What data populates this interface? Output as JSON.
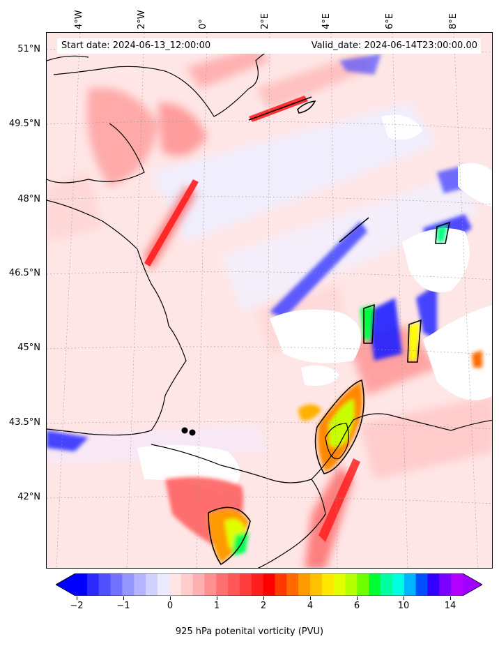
{
  "header": {
    "start_date": "Start date: 2024-06-13_12:00:00",
    "valid_date": "Valid_date: 2024-06-14T23:00:00.00"
  },
  "axes": {
    "lat_labels": [
      "51°N",
      "49.5°N",
      "48°N",
      "46.5°N",
      "45°N",
      "43.5°N",
      "42°N"
    ],
    "lon_labels": [
      "4°W",
      "2°W",
      "0°",
      "2°E",
      "4°E",
      "6°E",
      "8°E"
    ]
  },
  "colorbar": {
    "ticks": [
      "−2",
      "−1",
      "0",
      "1",
      "2",
      "4",
      "6",
      "10",
      "14"
    ],
    "title": "925 hPa potenital vorticity (PVU)",
    "colors": [
      "#0000ff",
      "#2a2aff",
      "#5050ff",
      "#7272ff",
      "#9696ff",
      "#b4b4ff",
      "#d2d2ff",
      "#ebebff",
      "#ffe4e4",
      "#ffcccc",
      "#ffb0b0",
      "#ff9090",
      "#ff7070",
      "#ff5858",
      "#ff3c3c",
      "#ff1e1e",
      "#ff0000",
      "#ff3a00",
      "#ff6a00",
      "#ff9a00",
      "#ffc000",
      "#ffe800",
      "#e4ff00",
      "#b4ff00",
      "#6eff00",
      "#00ff32",
      "#00ffa0",
      "#00ffe0",
      "#00b4ff",
      "#0050ff",
      "#3200ff",
      "#7a00ff",
      "#b400ff"
    ],
    "under_color": "#0000ff",
    "over_color": "#a000ff"
  },
  "markers": {
    "points": 2
  }
}
